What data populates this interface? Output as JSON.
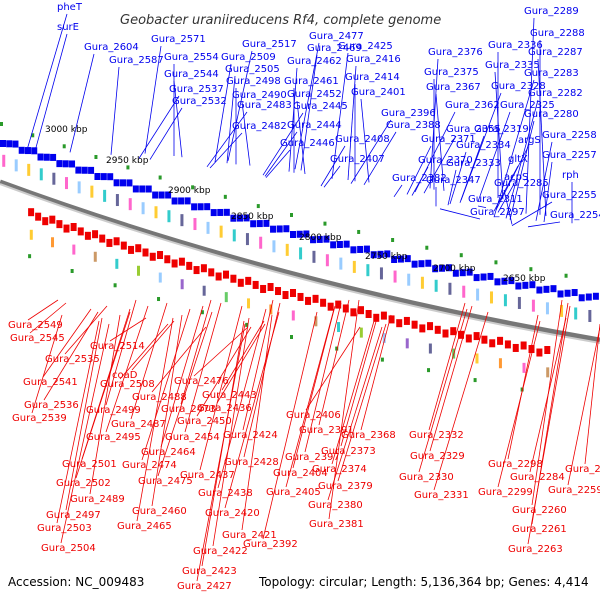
{
  "title": "Geobacter uraniireducens Rf4, complete genome",
  "footer": {
    "accession": "Accession: NC_009483",
    "summary": "Topology: circular; Length: 5,136,364 bp; Genes: 4,414"
  },
  "colors": {
    "forward_strand": "#0000ee",
    "reverse_strand": "#ee0000",
    "backbone": "#888888",
    "rna_marker": "#2a9a2a"
  },
  "kbp_ticks": [
    "3000 kbp",
    "2950 kbp",
    "2900 kbp",
    "2850 kbp",
    "2800 kbp",
    "2750 kbp",
    "2700 kbp",
    "2650 kbp"
  ],
  "forward_labels": [
    "pheT",
    "surE",
    "Gura_2604",
    "Gura_2571",
    "Gura_2587",
    "Gura_2554",
    "Gura_2544",
    "Gura_2537",
    "Gura_2532",
    "Gura_2517",
    "Gura_2509",
    "Gura_2505",
    "Gura_2498",
    "Gura_2490",
    "Gura_2483",
    "Gura_2482",
    "Gura_2477",
    "Gura_2469",
    "Gura_2462",
    "Gura_2461",
    "Gura_2452",
    "Gura_2445",
    "Gura_2444",
    "Gura_2446",
    "Gura_2425",
    "Gura_2416",
    "Gura_2414",
    "Gura_2401",
    "Gura_2396",
    "Gura_2388",
    "Gura_2408",
    "Gura_2407",
    "Gura_2376",
    "Gura_2375",
    "Gura_2367",
    "Gura_2362",
    "Gura_2355",
    "Gura_2371",
    "Gura_2370",
    "Gura_2382",
    "Gura_2336",
    "Gura_2335",
    "Gura_2328",
    "Gura_2325",
    "Gura_2319",
    "Gura_2334",
    "Gura_2333",
    "Gura_2347",
    "Gura_2311",
    "Gura_2297",
    "argS",
    "gltX",
    "acpS",
    "Gura_2289",
    "Gura_2288",
    "Gura_2287",
    "Gura_2283",
    "Gura_2282",
    "Gura_2280",
    "Gura_2258",
    "Gura_2257",
    "rph",
    "Gura_2285",
    "Gura_2255",
    "Gura_2254"
  ],
  "reverse_labels": [
    "Gura_2549",
    "Gura_2545",
    "Gura_2535",
    "Gura_2541",
    "Gura_2536",
    "Gura_2539",
    "Gura_2514",
    "coaD",
    "Gura_2508",
    "Gura_2488",
    "Gura_2499",
    "Gura_2487",
    "Gura_2495",
    "Gura_2501",
    "Gura_2502",
    "Gura_2489",
    "Gura_2497",
    "Gura_2503",
    "Gura_2504",
    "Gura_2476",
    "Gura_2473",
    "Gura_2454",
    "Gura_2464",
    "Gura_2474",
    "Gura_2475",
    "Gura_2460",
    "Gura_2465",
    "Gura_2443",
    "Gura_2436",
    "Gura_2450",
    "Gura_2424",
    "Gura_2428",
    "Gura_2437",
    "Gura_2438",
    "Gura_2420",
    "Gura_2421",
    "Gura_2422",
    "Gura_2423",
    "Gura_2427",
    "Gura_2406",
    "Gura_2391",
    "Gura_2397",
    "Gura_2404",
    "Gura_2405",
    "Gura_2392",
    "Gura_2368",
    "Gura_2373",
    "Gura_2374",
    "Gura_2379",
    "Gura_2380",
    "Gura_2381",
    "Gura_2332",
    "Gura_2329",
    "Gura_2330",
    "Gura_2331",
    "Gura_2298",
    "Gura_2284",
    "Gura_2299",
    "Gura_2252",
    "Gura_2259",
    "Gura_2260",
    "Gura_2261",
    "Gura_2263"
  ]
}
